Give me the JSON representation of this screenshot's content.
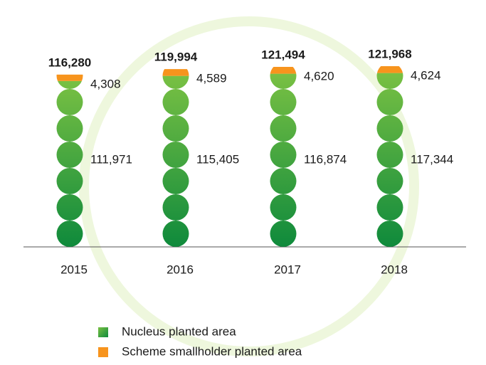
{
  "chart_data": {
    "type": "pictorial-stacked-bar",
    "categories": [
      "2015",
      "2016",
      "2017",
      "2018"
    ],
    "series": [
      {
        "name": "Nucleus planted area",
        "color": "#0f8a3c",
        "values": [
          111971,
          115405,
          116874,
          117344
        ],
        "value_labels": [
          "111,971",
          "115,405",
          "116,874",
          "117,344"
        ]
      },
      {
        "name": "Scheme smallholder planted area",
        "color": "#f7941d",
        "values": [
          4308,
          4589,
          4620,
          4624
        ],
        "value_labels": [
          "4,308",
          "4,589",
          "4,620",
          "4,624"
        ]
      }
    ],
    "totals": {
      "values": [
        116280,
        119994,
        121494,
        121968
      ],
      "value_labels": [
        "116,280",
        "119,994",
        "121,494",
        "121,968"
      ]
    }
  }
}
